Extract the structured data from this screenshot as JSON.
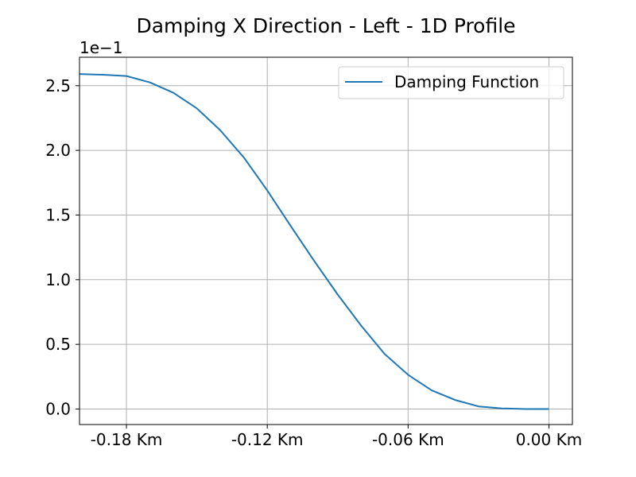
{
  "chart_data": {
    "type": "line",
    "title": "Damping X Direction - Left - 1D Profile",
    "xlabel": "",
    "ylabel": "",
    "y_offset_label": "1e−1",
    "xlim": [
      -0.2,
      0.01
    ],
    "ylim": [
      -0.012,
      0.272
    ],
    "x_ticks": [
      -0.18,
      -0.12,
      -0.06,
      0.0
    ],
    "x_tick_labels": [
      "-0.18 Km",
      "-0.12 Km",
      "-0.06 Km",
      "0.00 Km"
    ],
    "y_ticks": [
      0.0,
      0.05,
      0.1,
      0.15,
      0.2,
      0.25
    ],
    "y_tick_labels": [
      "0.0",
      "0.5",
      "1.0",
      "1.5",
      "2.0",
      "2.5"
    ],
    "grid": true,
    "legend_position": "top-right",
    "series": [
      {
        "name": "Damping Function",
        "color": "#1f77b4",
        "x": [
          -0.2,
          -0.19,
          -0.18,
          -0.17,
          -0.16,
          -0.15,
          -0.14,
          -0.13,
          -0.12,
          -0.11,
          -0.1,
          -0.09,
          -0.08,
          -0.07,
          -0.06,
          -0.05,
          -0.04,
          -0.03,
          -0.02,
          -0.01,
          0.0
        ],
        "y": [
          0.259,
          0.2585,
          0.2575,
          0.2525,
          0.2445,
          0.2325,
          0.2155,
          0.1945,
          0.169,
          0.1415,
          0.1145,
          0.0885,
          0.0645,
          0.0425,
          0.0265,
          0.0145,
          0.007,
          0.002,
          0.0005,
          0.0,
          0.0
        ]
      }
    ]
  }
}
